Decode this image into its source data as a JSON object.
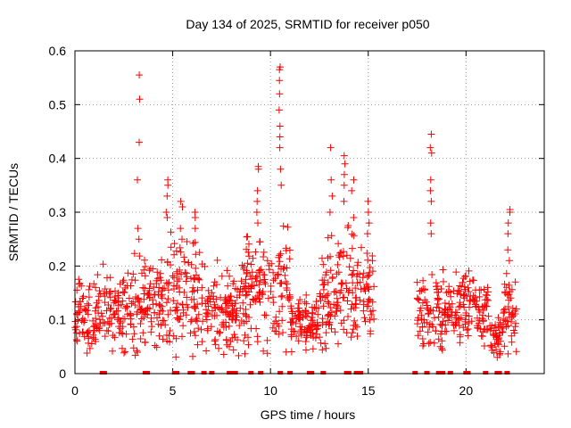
{
  "chart_data": {
    "type": "scatter",
    "title": "Day 134 of 2025, SRMTID for receiver p050",
    "xlabel": "GPS time / hours",
    "ylabel": "SRMTID / TECUs",
    "xlim": [
      0,
      24
    ],
    "ylim": [
      0,
      0.6
    ],
    "x_ticks": [
      0,
      5,
      10,
      15,
      20
    ],
    "x_tick_labels": [
      "0",
      "5",
      "10",
      "15",
      "20"
    ],
    "y_ticks": [
      0,
      0.1,
      0.2,
      0.3,
      0.4,
      0.5,
      0.6
    ],
    "y_tick_labels": [
      "0",
      "0.1",
      "0.2",
      "0.3",
      "0.4",
      "0.5",
      "0.6"
    ],
    "grid": true,
    "marker": "plus",
    "color": "#ff0000",
    "segments": [
      {
        "x0": 0.0,
        "x1": 1.0,
        "base": 0.1,
        "spread": 0.04
      },
      {
        "x0": 1.0,
        "x1": 2.5,
        "base": 0.12,
        "spread": 0.04
      },
      {
        "x0": 2.5,
        "x1": 4.0,
        "base": 0.13,
        "spread": 0.05
      },
      {
        "x0": 4.0,
        "x1": 6.5,
        "base": 0.15,
        "spread": 0.06
      },
      {
        "x0": 6.5,
        "x1": 8.5,
        "base": 0.11,
        "spread": 0.05
      },
      {
        "x0": 8.5,
        "x1": 11.0,
        "base": 0.16,
        "spread": 0.07
      },
      {
        "x0": 11.0,
        "x1": 12.5,
        "base": 0.09,
        "spread": 0.03
      },
      {
        "x0": 12.5,
        "x1": 15.3,
        "base": 0.15,
        "spread": 0.06
      },
      {
        "x0": 17.5,
        "x1": 19.0,
        "base": 0.12,
        "spread": 0.05
      },
      {
        "x0": 19.0,
        "x1": 21.2,
        "base": 0.12,
        "spread": 0.04
      },
      {
        "x0": 21.2,
        "x1": 21.8,
        "base": 0.07,
        "spread": 0.03
      },
      {
        "x0": 21.8,
        "x1": 22.6,
        "base": 0.11,
        "spread": 0.04
      }
    ],
    "spikes": [
      {
        "x": 3.25,
        "y": [
          0.555,
          0.51,
          0.43,
          0.36,
          0.27,
          0.25
        ]
      },
      {
        "x": 4.7,
        "y": [
          0.36,
          0.35,
          0.33,
          0.3,
          0.29
        ]
      },
      {
        "x": 5.45,
        "y": [
          0.32,
          0.31,
          0.27,
          0.25
        ]
      },
      {
        "x": 6.2,
        "y": [
          0.3,
          0.29,
          0.27
        ]
      },
      {
        "x": 9.35,
        "y": [
          0.385,
          0.38,
          0.34,
          0.32,
          0.3,
          0.28
        ]
      },
      {
        "x": 10.5,
        "y": [
          0.57,
          0.565,
          0.545,
          0.52,
          0.49,
          0.46,
          0.44,
          0.42,
          0.38,
          0.35
        ]
      },
      {
        "x": 13.1,
        "y": [
          0.42,
          0.36,
          0.33,
          0.3
        ]
      },
      {
        "x": 13.8,
        "y": [
          0.405,
          0.39,
          0.37,
          0.35,
          0.32
        ]
      },
      {
        "x": 14.2,
        "y": [
          0.36,
          0.34,
          0.29
        ]
      },
      {
        "x": 15.0,
        "y": [
          0.32,
          0.3,
          0.28,
          0.26
        ]
      },
      {
        "x": 18.2,
        "y": [
          0.445,
          0.42,
          0.41,
          0.36,
          0.34,
          0.32,
          0.28,
          0.26
        ]
      },
      {
        "x": 22.2,
        "y": [
          0.305,
          0.3,
          0.28,
          0.26,
          0.23,
          0.21
        ]
      }
    ],
    "zero_markers_x": [
      1.4,
      1.5,
      3.6,
      3.7,
      5.1,
      5.2,
      5.9,
      6.0,
      6.6,
      7.0,
      7.9,
      8.0,
      8.2,
      9.0,
      9.5,
      10.5,
      11.0,
      12.0,
      12.1,
      12.7,
      13.9,
      14.0,
      14.4,
      14.5,
      14.6,
      17.4,
      18.0,
      18.6,
      18.8,
      19.2,
      20.0,
      20.1,
      21.0,
      21.6,
      21.7,
      22.1
    ]
  }
}
